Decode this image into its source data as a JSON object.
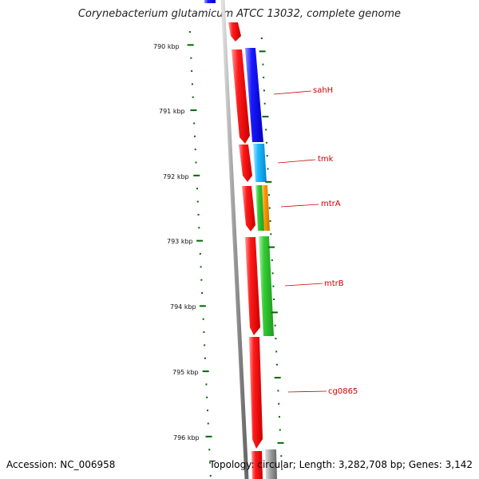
{
  "title": "Corynebacterium glutamicum ATCC 13032, complete genome",
  "footer": {
    "accession": "Accession: NC_006958",
    "stats": "Topology: circular; Length: 3,282,708 bp; Genes: 3,142"
  },
  "ticks": [
    "790 kbp",
    "791 kbp",
    "792 kbp",
    "793 kbp",
    "794 kbp",
    "795 kbp",
    "796 kbp"
  ],
  "genes": [
    {
      "label": "sahH",
      "color": "#0000ff"
    },
    {
      "label": "tmk",
      "color": "#00aaff"
    },
    {
      "label": "mtrA",
      "color": "#33cc33"
    },
    {
      "label": "mtrB",
      "color": "#33cc33"
    },
    {
      "label": "cg0865",
      "color": "#ff0000"
    }
  ],
  "colors": {
    "forward_strand": "#ff0000",
    "backbone": "#888888",
    "tick": "#006600",
    "label": "#cc0000",
    "mtrA_accent": "#ff9900"
  }
}
